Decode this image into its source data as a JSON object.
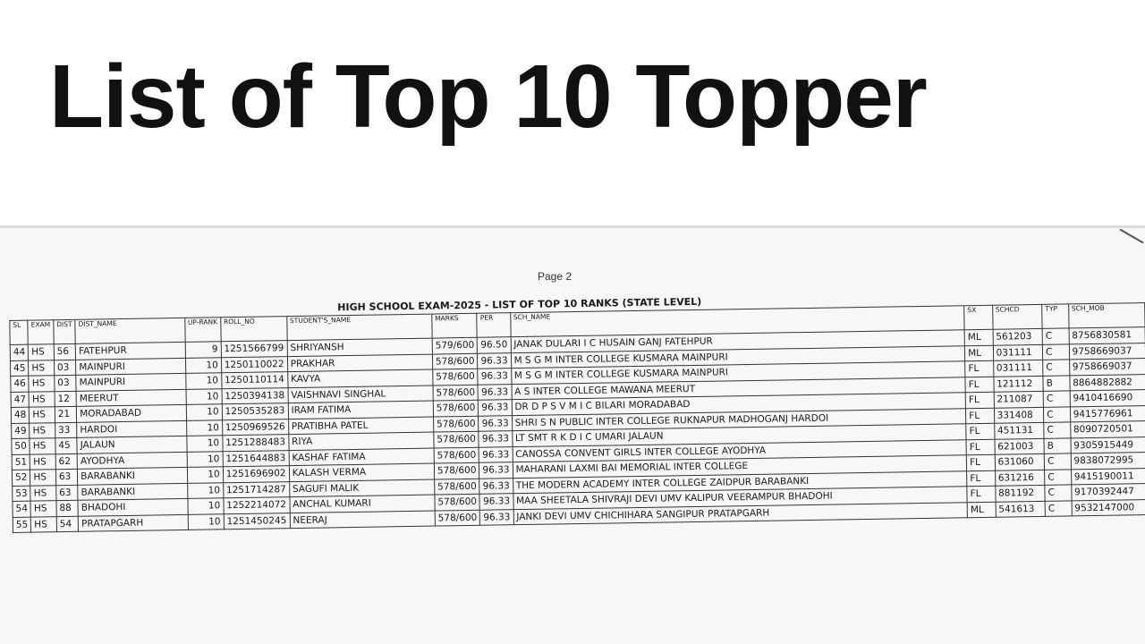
{
  "headline": "List of Top 10 Topper",
  "document": {
    "page_label": "Page 2",
    "table_title": "HIGH SCHOOL EXAM-2025 - LIST OF TOP 10 RANKS (STATE LEVEL)",
    "columns": [
      "SL",
      "EXAM",
      "DIST",
      "DIST_NAME",
      "UP-RANK",
      "ROLL_NO",
      "STUDENT'S_NAME",
      "MARKS",
      "PER",
      "SCH_NAME",
      "SX",
      "SCHCD",
      "TYP",
      "SCH_MOB"
    ],
    "rows": [
      [
        "44",
        "HS",
        "56",
        "FATEHPUR",
        "9",
        "1251566799",
        "SHRIYANSH",
        "579/600",
        "96.50",
        "JANAK DULARI I C HUSAIN GANJ FATEHPUR",
        "ML",
        "561203",
        "C",
        "8756830581"
      ],
      [
        "45",
        "HS",
        "03",
        "MAINPURI",
        "10",
        "1250110022",
        "PRAKHAR",
        "578/600",
        "96.33",
        "M S G M INTER COLLEGE KUSMARA MAINPURI",
        "ML",
        "031111",
        "C",
        "9758669037"
      ],
      [
        "46",
        "HS",
        "03",
        "MAINPURI",
        "10",
        "1250110114",
        "KAVYA",
        "578/600",
        "96.33",
        "M S G M INTER COLLEGE KUSMARA MAINPURI",
        "FL",
        "031111",
        "C",
        "9758669037"
      ],
      [
        "47",
        "HS",
        "12",
        "MEERUT",
        "10",
        "1250394138",
        "VAISHNAVI SINGHAL",
        "578/600",
        "96.33",
        "A S INTER COLLEGE MAWANA MEERUT",
        "FL",
        "121112",
        "B",
        "8864882882"
      ],
      [
        "48",
        "HS",
        "21",
        "MORADABAD",
        "10",
        "1250535283",
        "IRAM FATIMA",
        "578/600",
        "96.33",
        "DR D P S V M I C BILARI MORADABAD",
        "FL",
        "211087",
        "C",
        "9410416690"
      ],
      [
        "49",
        "HS",
        "33",
        "HARDOI",
        "10",
        "1250969526",
        "PRATIBHA PATEL",
        "578/600",
        "96.33",
        "SHRI S N PUBLIC INTER COLLEGE RUKNAPUR MADHOGANJ HARDOI",
        "FL",
        "331408",
        "C",
        "9415776961"
      ],
      [
        "50",
        "HS",
        "45",
        "JALAUN",
        "10",
        "1251288483",
        "RIYA",
        "578/600",
        "96.33",
        "LT SMT R K D I C UMARI JALAUN",
        "FL",
        "451131",
        "C",
        "8090720501"
      ],
      [
        "51",
        "HS",
        "62",
        "AYODHYA",
        "10",
        "1251644883",
        "KASHAF FATIMA",
        "578/600",
        "96.33",
        "CANOSSA CONVENT GIRLS INTER COLLEGE AYODHYA",
        "FL",
        "621003",
        "B",
        "9305915449"
      ],
      [
        "52",
        "HS",
        "63",
        "BARABANKI",
        "10",
        "1251696902",
        "KALASH VERMA",
        "578/600",
        "96.33",
        "MAHARANI LAXMI BAI MEMORIAL INTER COLLEGE",
        "FL",
        "631060",
        "C",
        "9838072995"
      ],
      [
        "53",
        "HS",
        "63",
        "BARABANKI",
        "10",
        "1251714287",
        "SAGUFI MALIK",
        "578/600",
        "96.33",
        "THE MODERN ACADEMY INTER COLLEGE ZAIDPUR BARABANKI",
        "FL",
        "631216",
        "C",
        "9415190011"
      ],
      [
        "54",
        "HS",
        "88",
        "BHADOHI",
        "10",
        "1252214072",
        "ANCHAL KUMARI",
        "578/600",
        "96.33",
        "MAA SHEETALA SHIVRAJI DEVI UMV KALIPUR VEERAMPUR BHADOHI",
        "FL",
        "881192",
        "C",
        "9170392447"
      ],
      [
        "55",
        "HS",
        "54",
        "PRATAPGARH",
        "10",
        "1251450245",
        "NEERAJ",
        "578/600",
        "96.33",
        "JANKI DEVI UMV CHICHIHARA SANGIPUR PRATAPGARH",
        "ML",
        "541613",
        "C",
        "9532147000"
      ]
    ]
  }
}
